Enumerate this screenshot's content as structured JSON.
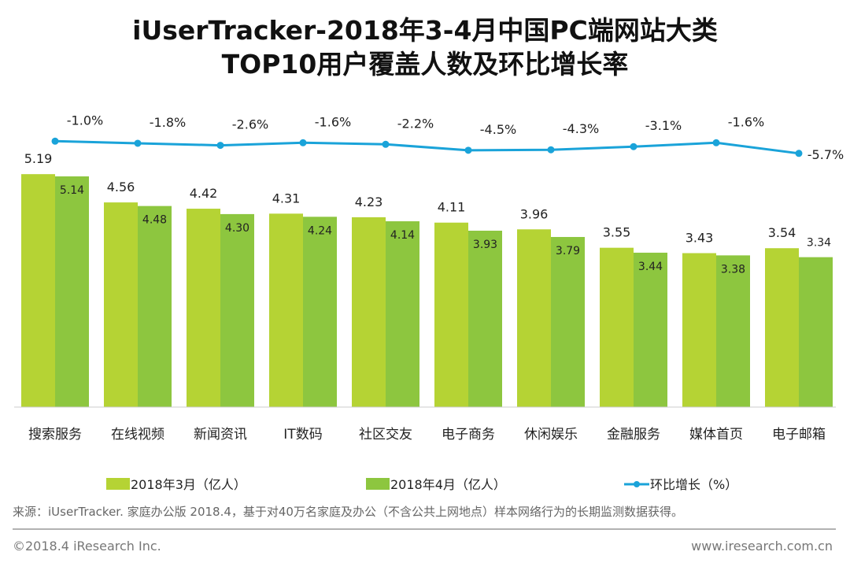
{
  "colors": {
    "march": "#b5d334",
    "april": "#8dc63f",
    "line": "#1aa3d9"
  },
  "chart_data": {
    "type": "bar",
    "title_line1": "iUserTracker-2018年3-4月中国PC端网站大类",
    "title_line2": "TOP10用户覆盖人数及环比增长率",
    "categories": [
      "搜索服务",
      "在线视频",
      "新闻资讯",
      "IT数码",
      "社区交友",
      "电子商务",
      "休闲娱乐",
      "金融服务",
      "媒体首页",
      "电子邮箱"
    ],
    "series": [
      {
        "name": "2018年3月（亿人）",
        "type": "bar",
        "values": [
          5.19,
          4.56,
          4.42,
          4.31,
          4.23,
          4.11,
          3.96,
          3.55,
          3.43,
          3.54
        ],
        "labels": [
          "5.19",
          "4.56",
          "4.42",
          "4.31",
          "4.23",
          "4.11",
          "3.96",
          "3.55",
          "3.43",
          "3.54"
        ]
      },
      {
        "name": "2018年4月（亿人）",
        "type": "bar",
        "values": [
          5.14,
          4.48,
          4.3,
          4.24,
          4.14,
          3.93,
          3.79,
          3.44,
          3.38,
          3.34
        ],
        "labels": [
          "5.14",
          "4.48",
          "4.30",
          "4.24",
          "4.14",
          "3.93",
          "3.79",
          "3.44",
          "3.38",
          "3.34"
        ]
      },
      {
        "name": "环比增长（%）",
        "type": "line",
        "values": [
          -1.0,
          -1.8,
          -2.6,
          -1.6,
          -2.2,
          -4.5,
          -4.3,
          -3.1,
          -1.6,
          -5.7
        ],
        "labels": [
          "-1.0%",
          "-1.8%",
          "-2.6%",
          "-1.6%",
          "-2.2%",
          "-4.5%",
          "-4.3%",
          "-3.1%",
          "-1.6%",
          "-5.7%"
        ]
      }
    ],
    "ylim": [
      0,
      5.19
    ],
    "grid": false,
    "legend": "bottom"
  },
  "source": "来源：iUserTracker. 家庭办公版 2018.4，基于对40万名家庭及办公（不含公共上网地点）样本网络行为的长期监测数据获得。",
  "footer": {
    "copyright": "©2018.4 iResearch Inc.",
    "website": "www.iresearch.com.cn"
  }
}
